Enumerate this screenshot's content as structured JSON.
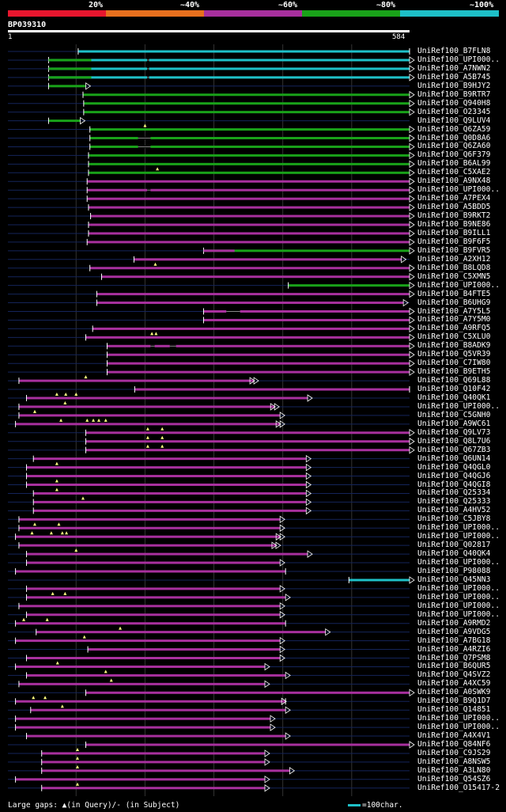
{
  "query": {
    "name": "BP039310",
    "start": "1",
    "end": "584",
    "length": 584
  },
  "legend": {
    "labels": [
      "20%",
      "~40%",
      "~60%",
      "~80%",
      "~100%"
    ],
    "colors": [
      "#e8162e",
      "#e8701e",
      "#a8309e",
      "#19a219",
      "#1ec0c8"
    ]
  },
  "footer": {
    "gaps_text": "Large gaps: ▲(in Query)/- (in Subject)",
    "scale_text": "=100char."
  },
  "chart_data": {
    "type": "alignment",
    "title": "BP039310",
    "x_range": [
      1,
      584
    ],
    "gridlines": [
      100,
      200,
      300,
      400,
      500
    ],
    "hits": [
      {
        "label": "UniRef100_B7FLN8",
        "start": 103,
        "end": 584,
        "tri": false,
        "color": "#1ec0c8",
        "pre": 1
      },
      {
        "label": "UniRef100_UPI000..",
        "start": 60,
        "end": 584,
        "tri": true,
        "color": "#1ec0c8",
        "pre": 1,
        "gaps": [
          [
            203,
            206
          ]
        ],
        "seg2": [
          60,
          122,
          "#19a219"
        ]
      },
      {
        "label": "UniRef100_A7NWN2",
        "start": 60,
        "end": 584,
        "tri": true,
        "color": "#1ec0c8",
        "pre": 1,
        "gaps": [
          [
            203,
            206
          ]
        ],
        "seg2": [
          60,
          122,
          "#19a219"
        ]
      },
      {
        "label": "UniRef100_A5B745",
        "start": 60,
        "end": 584,
        "tri": true,
        "color": "#1ec0c8",
        "pre": 1,
        "gaps": [
          [
            203,
            206
          ]
        ],
        "seg2": [
          60,
          122,
          "#19a219"
        ]
      },
      {
        "label": "UniRef100_B9HJY2",
        "start": 60,
        "end": 114,
        "tri": true,
        "color": "#19a219",
        "pre": 1
      },
      {
        "label": "UniRef100_B9RTR7",
        "start": 110,
        "end": 584,
        "tri": true,
        "color": "#19a219",
        "pre": 1
      },
      {
        "label": "UniRef100_Q940H8",
        "start": 111,
        "end": 584,
        "tri": true,
        "color": "#19a219",
        "pre": 1
      },
      {
        "label": "UniRef100_O23345",
        "start": 111,
        "end": 584,
        "tri": true,
        "color": "#19a219",
        "pre": 1
      },
      {
        "label": "UniRef100_Q9LUV4",
        "start": 60,
        "end": 106,
        "tri": true,
        "color": "#19a219",
        "pre": 1
      },
      {
        "label": "UniRef100_Q6ZA59",
        "start": 120,
        "end": 584,
        "tri": true,
        "color": "#19a219",
        "pre": 1,
        "qmarks": [
          200
        ]
      },
      {
        "label": "UniRef100_Q0D8A6",
        "start": 120,
        "end": 584,
        "tri": true,
        "color": "#19a219",
        "pre": 1,
        "gaps": [
          [
            190,
            208
          ]
        ]
      },
      {
        "label": "UniRef100_Q6ZA60",
        "start": 120,
        "end": 584,
        "tri": true,
        "color": "#19a219",
        "pre": 1,
        "gaps": [
          [
            190,
            208
          ]
        ]
      },
      {
        "label": "UniRef100_Q6F379",
        "start": 118,
        "end": 584,
        "tri": true,
        "color": "#19a219",
        "pre": 1
      },
      {
        "label": "UniRef100_B6AL99",
        "start": 118,
        "end": 584,
        "tri": true,
        "color": "#19a219",
        "pre": 1
      },
      {
        "label": "UniRef100_C5XAE2",
        "start": 118,
        "end": 584,
        "tri": true,
        "color": "#19a219",
        "pre": 1,
        "qmarks": [
          218
        ]
      },
      {
        "label": "UniRef100_A9NX48",
        "start": 116,
        "end": 584,
        "tri": true,
        "color": "#a8309e",
        "pre": 1
      },
      {
        "label": "UniRef100_UPI000..",
        "start": 116,
        "end": 584,
        "tri": true,
        "color": "#a8309e",
        "pre": 1,
        "gaps": [
          [
            203,
            208
          ]
        ]
      },
      {
        "label": "UniRef100_A7PEX4",
        "start": 116,
        "end": 584,
        "tri": true,
        "color": "#a8309e",
        "pre": 1
      },
      {
        "label": "UniRef100_A5BDD5",
        "start": 118,
        "end": 584,
        "tri": true,
        "color": "#a8309e",
        "pre": 1
      },
      {
        "label": "UniRef100_B9RKT2",
        "start": 121,
        "end": 584,
        "tri": true,
        "color": "#a8309e",
        "pre": 1
      },
      {
        "label": "UniRef100_B9NE86",
        "start": 118,
        "end": 584,
        "tri": true,
        "color": "#a8309e",
        "pre": 1
      },
      {
        "label": "UniRef100_B9ILL1",
        "start": 118,
        "end": 584,
        "tri": true,
        "color": "#a8309e",
        "pre": 1
      },
      {
        "label": "UniRef100_B9F6F5",
        "start": 116,
        "end": 584,
        "tri": true,
        "color": "#a8309e",
        "pre": 1
      },
      {
        "label": "UniRef100_B9FVR5",
        "start": 285,
        "end": 584,
        "tri": true,
        "color": "#19a219",
        "pre": 1,
        "seg2": [
          285,
          330,
          "#a8309e"
        ]
      },
      {
        "label": "UniRef100_A2XH12",
        "start": 184,
        "end": 572,
        "tri": true,
        "color": "#a8309e",
        "pre": 1
      },
      {
        "label": "UniRef100_B8LQD8",
        "start": 120,
        "end": 584,
        "tri": true,
        "color": "#a8309e",
        "pre": 1,
        "qmarks": [
          215
        ]
      },
      {
        "label": "UniRef100_C5XMN5",
        "start": 137,
        "end": 584,
        "tri": true,
        "color": "#a8309e",
        "pre": 1
      },
      {
        "label": "UniRef100_UPI000..",
        "start": 408,
        "end": 584,
        "tri": true,
        "color": "#19a219",
        "pre": 1
      },
      {
        "label": "UniRef100_B4FTE5",
        "start": 130,
        "end": 584,
        "tri": true,
        "color": "#a8309e",
        "pre": 1
      },
      {
        "label": "UniRef100_B6UHG9",
        "start": 130,
        "end": 575,
        "tri": true,
        "color": "#a8309e",
        "pre": 1
      },
      {
        "label": "UniRef100_A7Y5L5",
        "start": 285,
        "end": 584,
        "tri": true,
        "color": "#a8309e",
        "pre": 1,
        "gaps": [
          [
            318,
            338
          ]
        ]
      },
      {
        "label": "UniRef100_A7Y5M0",
        "start": 285,
        "end": 584,
        "tri": true,
        "color": "#a8309e",
        "pre": 1
      },
      {
        "label": "UniRef100_A9RFQ5",
        "start": 124,
        "end": 584,
        "tri": true,
        "color": "#a8309e",
        "pre": 1
      },
      {
        "label": "UniRef100_C5XLU0",
        "start": 114,
        "end": 584,
        "tri": true,
        "color": "#a8309e",
        "pre": 1,
        "qmarks": [
          210,
          216
        ]
      },
      {
        "label": "UniRef100_B8ADK9",
        "start": 145,
        "end": 584,
        "tri": true,
        "color": "#a8309e",
        "pre": 1,
        "gaps": [
          [
            208,
            214
          ],
          [
            236,
            245
          ]
        ]
      },
      {
        "label": "UniRef100_Q5VR39",
        "start": 145,
        "end": 584,
        "tri": true,
        "color": "#a8309e",
        "pre": 1
      },
      {
        "label": "UniRef100_C7IW80",
        "start": 145,
        "end": 584,
        "tri": true,
        "color": "#a8309e",
        "pre": 1
      },
      {
        "label": "UniRef100_B9ETH5",
        "start": 145,
        "end": 584,
        "tri": true,
        "color": "#a8309e",
        "pre": 1
      },
      {
        "label": "UniRef100_Q69L88",
        "start": 17,
        "end": 358,
        "tri": true,
        "color": "#a8309e",
        "pre": 1,
        "tri2": true,
        "qmarks": [
          114
        ]
      },
      {
        "label": "UniRef100_Q10F42",
        "start": 185,
        "end": 584,
        "tri": false,
        "color": "#a8309e",
        "pre": 1
      },
      {
        "label": "UniRef100_Q40QK1",
        "start": 28,
        "end": 436,
        "tri": true,
        "color": "#a8309e",
        "pre": 1,
        "qmarks": [
          72,
          85,
          100
        ]
      },
      {
        "label": "UniRef100_UPI000..",
        "start": 17,
        "end": 388,
        "tri": true,
        "color": "#a8309e",
        "pre": 1,
        "tri2": true,
        "qmarks": [
          84
        ]
      },
      {
        "label": "UniRef100_C5GNH0",
        "start": 17,
        "end": 396,
        "tri": true,
        "color": "#a8309e",
        "pre": 1,
        "qmarks": [
          40
        ]
      },
      {
        "label": "UniRef100_A9WC61",
        "start": 12,
        "end": 396,
        "tri": true,
        "color": "#a8309e",
        "pre": 1,
        "tri2": true,
        "qmarks": [
          78,
          116,
          125,
          133,
          143
        ]
      },
      {
        "label": "UniRef100_Q9LV73",
        "start": 114,
        "end": 584,
        "tri": true,
        "color": "#a8309e",
        "pre": 1,
        "qmarks": [
          204,
          225
        ]
      },
      {
        "label": "UniRef100_Q8L7U6",
        "start": 114,
        "end": 584,
        "tri": true,
        "color": "#a8309e",
        "pre": 1,
        "qmarks": [
          204,
          225
        ]
      },
      {
        "label": "UniRef100_Q67ZB3",
        "start": 114,
        "end": 584,
        "tri": true,
        "color": "#a8309e",
        "pre": 1,
        "qmarks": [
          204,
          225
        ]
      },
      {
        "label": "UniRef100_Q6UN14",
        "start": 38,
        "end": 434,
        "tri": true,
        "color": "#a8309e",
        "pre": 1
      },
      {
        "label": "UniRef100_Q4QGL0",
        "start": 28,
        "end": 434,
        "tri": true,
        "color": "#a8309e",
        "pre": 1,
        "qmarks": [
          72
        ]
      },
      {
        "label": "UniRef100_Q4QGJ6",
        "start": 28,
        "end": 434,
        "tri": true,
        "color": "#a8309e",
        "pre": 1
      },
      {
        "label": "UniRef100_Q4QGI8",
        "start": 28,
        "end": 434,
        "tri": true,
        "color": "#a8309e",
        "pre": 1,
        "qmarks": [
          72
        ]
      },
      {
        "label": "UniRef100_Q25334",
        "start": 38,
        "end": 434,
        "tri": true,
        "color": "#a8309e",
        "pre": 1,
        "qmarks": [
          72
        ]
      },
      {
        "label": "UniRef100_Q25333",
        "start": 38,
        "end": 434,
        "tri": true,
        "color": "#a8309e",
        "pre": 1,
        "qmarks": [
          110
        ]
      },
      {
        "label": "UniRef100_A4HV52",
        "start": 38,
        "end": 434,
        "tri": true,
        "color": "#a8309e",
        "pre": 1
      },
      {
        "label": "UniRef100_C5JBY8",
        "start": 17,
        "end": 396,
        "tri": true,
        "color": "#a8309e",
        "pre": 1
      },
      {
        "label": "UniRef100_UPI000..",
        "start": 17,
        "end": 396,
        "tri": true,
        "color": "#a8309e",
        "pre": 1,
        "qmarks": [
          40,
          75
        ]
      },
      {
        "label": "UniRef100_UPI000..",
        "start": 12,
        "end": 396,
        "tri": true,
        "color": "#a8309e",
        "pre": 1,
        "tri2": true,
        "qmarks": [
          36,
          64,
          80,
          86
        ]
      },
      {
        "label": "UniRef100_Q02817",
        "start": 17,
        "end": 390,
        "tri": true,
        "color": "#a8309e",
        "pre": 1,
        "tri2": true
      },
      {
        "label": "UniRef100_Q40QK4",
        "start": 28,
        "end": 436,
        "tri": true,
        "color": "#a8309e",
        "pre": 1,
        "qmarks": [
          100
        ]
      },
      {
        "label": "UniRef100_UPI000..",
        "start": 28,
        "end": 396,
        "tri": true,
        "color": "#a8309e",
        "pre": 1
      },
      {
        "label": "UniRef100_P98088",
        "start": 12,
        "end": 404,
        "tri": false,
        "color": "#a8309e",
        "pre": 1
      },
      {
        "label": "UniRef100_Q45NN3",
        "start": 496,
        "end": 584,
        "tri": true,
        "color": "#1ec0c8",
        "pre": 1
      },
      {
        "label": "UniRef100_UPI000..",
        "start": 28,
        "end": 396,
        "tri": true,
        "color": "#a8309e",
        "pre": 1
      },
      {
        "label": "UniRef100_UPI000..",
        "start": 28,
        "end": 404,
        "tri": true,
        "color": "#a8309e",
        "pre": 1,
        "qmarks": [
          66,
          84
        ]
      },
      {
        "label": "UniRef100_UPI000..",
        "start": 17,
        "end": 396,
        "tri": true,
        "color": "#a8309e",
        "pre": 1
      },
      {
        "label": "UniRef100_UPI000..",
        "start": 28,
        "end": 396,
        "tri": true,
        "color": "#a8309e",
        "pre": 1
      },
      {
        "label": "UniRef100_A9RMD2",
        "start": 12,
        "end": 404,
        "tri": false,
        "color": "#a8309e",
        "pre": 1,
        "qmarks": [
          24,
          58
        ]
      },
      {
        "label": "UniRef100_A9VDG5",
        "start": 42,
        "end": 462,
        "tri": true,
        "color": "#a8309e",
        "pre": 1,
        "qmarks": [
          164
        ]
      },
      {
        "label": "UniRef100_A7BG18",
        "start": 12,
        "end": 396,
        "tri": true,
        "color": "#a8309e",
        "pre": 1,
        "qmarks": [
          112
        ]
      },
      {
        "label": "UniRef100_A4RZI6",
        "start": 117,
        "end": 396,
        "tri": true,
        "color": "#a8309e",
        "pre": 1
      },
      {
        "label": "UniRef100_Q7PSM8",
        "start": 28,
        "end": 396,
        "tri": true,
        "color": "#a8309e",
        "pre": 1
      },
      {
        "label": "UniRef100_B6QUR5",
        "start": 12,
        "end": 374,
        "tri": true,
        "color": "#a8309e",
        "pre": 1,
        "qmarks": [
          73
        ]
      },
      {
        "label": "UniRef100_Q4SVZ2",
        "start": 28,
        "end": 404,
        "tri": true,
        "color": "#a8309e",
        "pre": 1,
        "qmarks": [
          143
        ]
      },
      {
        "label": "UniRef100_A4XC59",
        "start": 17,
        "end": 374,
        "tri": true,
        "color": "#a8309e",
        "pre": 1,
        "qmarks": [
          151
        ]
      },
      {
        "label": "UniRef100_A0SWK9",
        "start": 114,
        "end": 584,
        "tri": true,
        "color": "#a8309e",
        "pre": 1
      },
      {
        "label": "UniRef100_B9Q1D7",
        "start": 12,
        "end": 404,
        "tri": false,
        "color": "#a8309e",
        "pre": 1,
        "tri2": true,
        "qmarks": [
          38,
          55
        ]
      },
      {
        "label": "UniRef100_Q14851",
        "start": 34,
        "end": 404,
        "tri": true,
        "color": "#a8309e",
        "pre": 1,
        "qmarks": [
          80
        ]
      },
      {
        "label": "UniRef100_UPI000..",
        "start": 12,
        "end": 382,
        "tri": true,
        "color": "#a8309e",
        "pre": 1
      },
      {
        "label": "UniRef100_UPI000..",
        "start": 12,
        "end": 382,
        "tri": true,
        "color": "#a8309e",
        "pre": 1
      },
      {
        "label": "UniRef100_A4X4V1",
        "start": 28,
        "end": 404,
        "tri": true,
        "color": "#a8309e",
        "pre": 1
      },
      {
        "label": "UniRef100_Q84NF6",
        "start": 114,
        "end": 584,
        "tri": true,
        "color": "#a8309e",
        "pre": 1
      },
      {
        "label": "UniRef100_C9JS29",
        "start": 50,
        "end": 374,
        "tri": true,
        "color": "#a8309e",
        "pre": 1,
        "qmarks": [
          102
        ]
      },
      {
        "label": "UniRef100_A8NSW5",
        "start": 50,
        "end": 374,
        "tri": true,
        "color": "#a8309e",
        "pre": 1,
        "qmarks": [
          102
        ]
      },
      {
        "label": "UniRef100_A3LN80",
        "start": 50,
        "end": 410,
        "tri": true,
        "color": "#a8309e",
        "pre": 1,
        "qmarks": [
          102
        ]
      },
      {
        "label": "UniRef100_Q54SZ6",
        "start": 12,
        "end": 374,
        "tri": true,
        "color": "#a8309e",
        "pre": 1
      },
      {
        "label": "UniRef100_O15417-2",
        "start": 50,
        "end": 374,
        "tri": true,
        "color": "#a8309e",
        "pre": 1,
        "qmarks": [
          102
        ]
      }
    ]
  }
}
